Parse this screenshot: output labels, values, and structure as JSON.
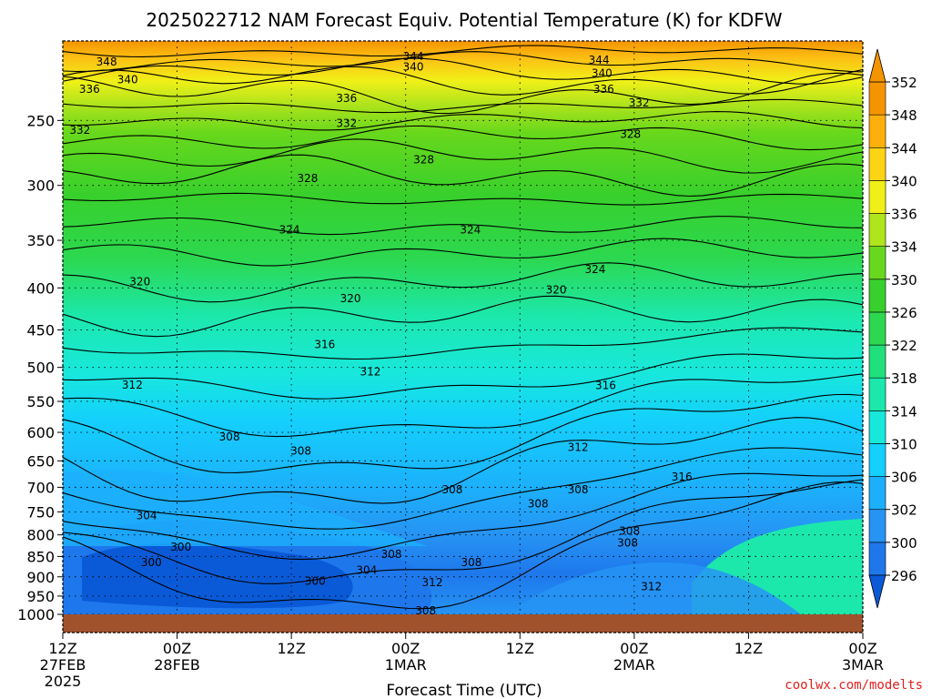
{
  "page": {
    "title": "2025022712 NAM Forecast Equiv. Potential Temperature (K) for KDFW",
    "credit": "coolwx.com/modelts"
  },
  "chart_data": {
    "type": "contour",
    "title": "2025022712 NAM Forecast Equiv. Potential Temperature (K) for KDFW",
    "xlabel": "Forecast Time (UTC)",
    "ylabel": "",
    "x_hours_range": [
      0,
      84
    ],
    "x_ticks": [
      {
        "hour": 0,
        "top": "12Z",
        "mid": "27FEB",
        "bottom": "2025"
      },
      {
        "hour": 12,
        "top": "00Z",
        "mid": "28FEB",
        "bottom": ""
      },
      {
        "hour": 24,
        "top": "12Z",
        "mid": "",
        "bottom": ""
      },
      {
        "hour": 36,
        "top": "00Z",
        "mid": "1MAR",
        "bottom": ""
      },
      {
        "hour": 48,
        "top": "12Z",
        "mid": "",
        "bottom": ""
      },
      {
        "hour": 60,
        "top": "00Z",
        "mid": "2MAR",
        "bottom": ""
      },
      {
        "hour": 72,
        "top": "12Z",
        "mid": "",
        "bottom": ""
      },
      {
        "hour": 84,
        "top": "00Z",
        "mid": "3MAR",
        "bottom": ""
      }
    ],
    "y_scale": "log-pressure (hPa)",
    "y_range": [
      1000,
      200
    ],
    "y_ticks": [
      "250",
      "300",
      "350",
      "400",
      "450",
      "500",
      "550",
      "600",
      "650",
      "700",
      "750",
      "800",
      "850",
      "900",
      "950",
      "1000"
    ],
    "colorbar": {
      "levels": [
        "296",
        "300",
        "302",
        "306",
        "310",
        "314",
        "318",
        "322",
        "326",
        "330",
        "334",
        "336",
        "340",
        "344",
        "348",
        "352"
      ],
      "colors": [
        "#0a5ad8",
        "#1e78ec",
        "#2694f4",
        "#1cb0fc",
        "#14d0fc",
        "#18e8dc",
        "#1ce8ac",
        "#20e07c",
        "#2cd850",
        "#38d02c",
        "#68d81c",
        "#b0e41c",
        "#f0f018",
        "#fcd414",
        "#fcb00c",
        "#f49400"
      ]
    },
    "contour_labels": [
      {
        "text": "348",
        "hour": 4.6,
        "p": 212
      },
      {
        "text": "344",
        "hour": 36.8,
        "p": 209
      },
      {
        "text": "340",
        "hour": 36.8,
        "p": 215
      },
      {
        "text": "344",
        "hour": 56.3,
        "p": 211
      },
      {
        "text": "340",
        "hour": 56.6,
        "p": 219
      },
      {
        "text": "340",
        "hour": 6.8,
        "p": 223
      },
      {
        "text": "336",
        "hour": 2.8,
        "p": 229
      },
      {
        "text": "336",
        "hour": 29.8,
        "p": 235
      },
      {
        "text": "336",
        "hour": 56.8,
        "p": 229
      },
      {
        "text": "332",
        "hour": 1.8,
        "p": 257
      },
      {
        "text": "332",
        "hour": 29.8,
        "p": 252
      },
      {
        "text": "332",
        "hour": 60.5,
        "p": 238
      },
      {
        "text": "328",
        "hour": 59.6,
        "p": 260
      },
      {
        "text": "328",
        "hour": 25.7,
        "p": 294
      },
      {
        "text": "328",
        "hour": 37.9,
        "p": 279
      },
      {
        "text": "324",
        "hour": 23.8,
        "p": 340
      },
      {
        "text": "324",
        "hour": 42.8,
        "p": 340
      },
      {
        "text": "324",
        "hour": 55.9,
        "p": 380
      },
      {
        "text": "320",
        "hour": 8.1,
        "p": 393
      },
      {
        "text": "320",
        "hour": 30.2,
        "p": 412
      },
      {
        "text": "320",
        "hour": 51.8,
        "p": 402
      },
      {
        "text": "316",
        "hour": 27.5,
        "p": 469
      },
      {
        "text": "316",
        "hour": 57.0,
        "p": 526
      },
      {
        "text": "312",
        "hour": 7.3,
        "p": 525
      },
      {
        "text": "312",
        "hour": 32.3,
        "p": 506
      },
      {
        "text": "312",
        "hour": 54.1,
        "p": 626
      },
      {
        "text": "308",
        "hour": 17.5,
        "p": 608
      },
      {
        "text": "308",
        "hour": 25.0,
        "p": 632
      },
      {
        "text": "308",
        "hour": 40.9,
        "p": 705
      },
      {
        "text": "308",
        "hour": 49.9,
        "p": 733
      },
      {
        "text": "308",
        "hour": 54.1,
        "p": 705
      },
      {
        "text": "308",
        "hour": 59.3,
        "p": 818
      },
      {
        "text": "304",
        "hour": 8.8,
        "p": 758
      },
      {
        "text": "304",
        "hour": 31.9,
        "p": 884
      },
      {
        "text": "300",
        "hour": 12.4,
        "p": 828
      },
      {
        "text": "300",
        "hour": 9.3,
        "p": 865
      },
      {
        "text": "300",
        "hour": 26.5,
        "p": 911
      },
      {
        "text": "308",
        "hour": 34.5,
        "p": 845
      },
      {
        "text": "308",
        "hour": 42.9,
        "p": 865
      },
      {
        "text": "312",
        "hour": 38.8,
        "p": 915
      },
      {
        "text": "308",
        "hour": 38.1,
        "p": 990
      },
      {
        "text": "308",
        "hour": 59.5,
        "p": 792
      },
      {
        "text": "312",
        "hour": 61.8,
        "p": 925
      },
      {
        "text": "316",
        "hour": 65.0,
        "p": 680
      }
    ]
  }
}
